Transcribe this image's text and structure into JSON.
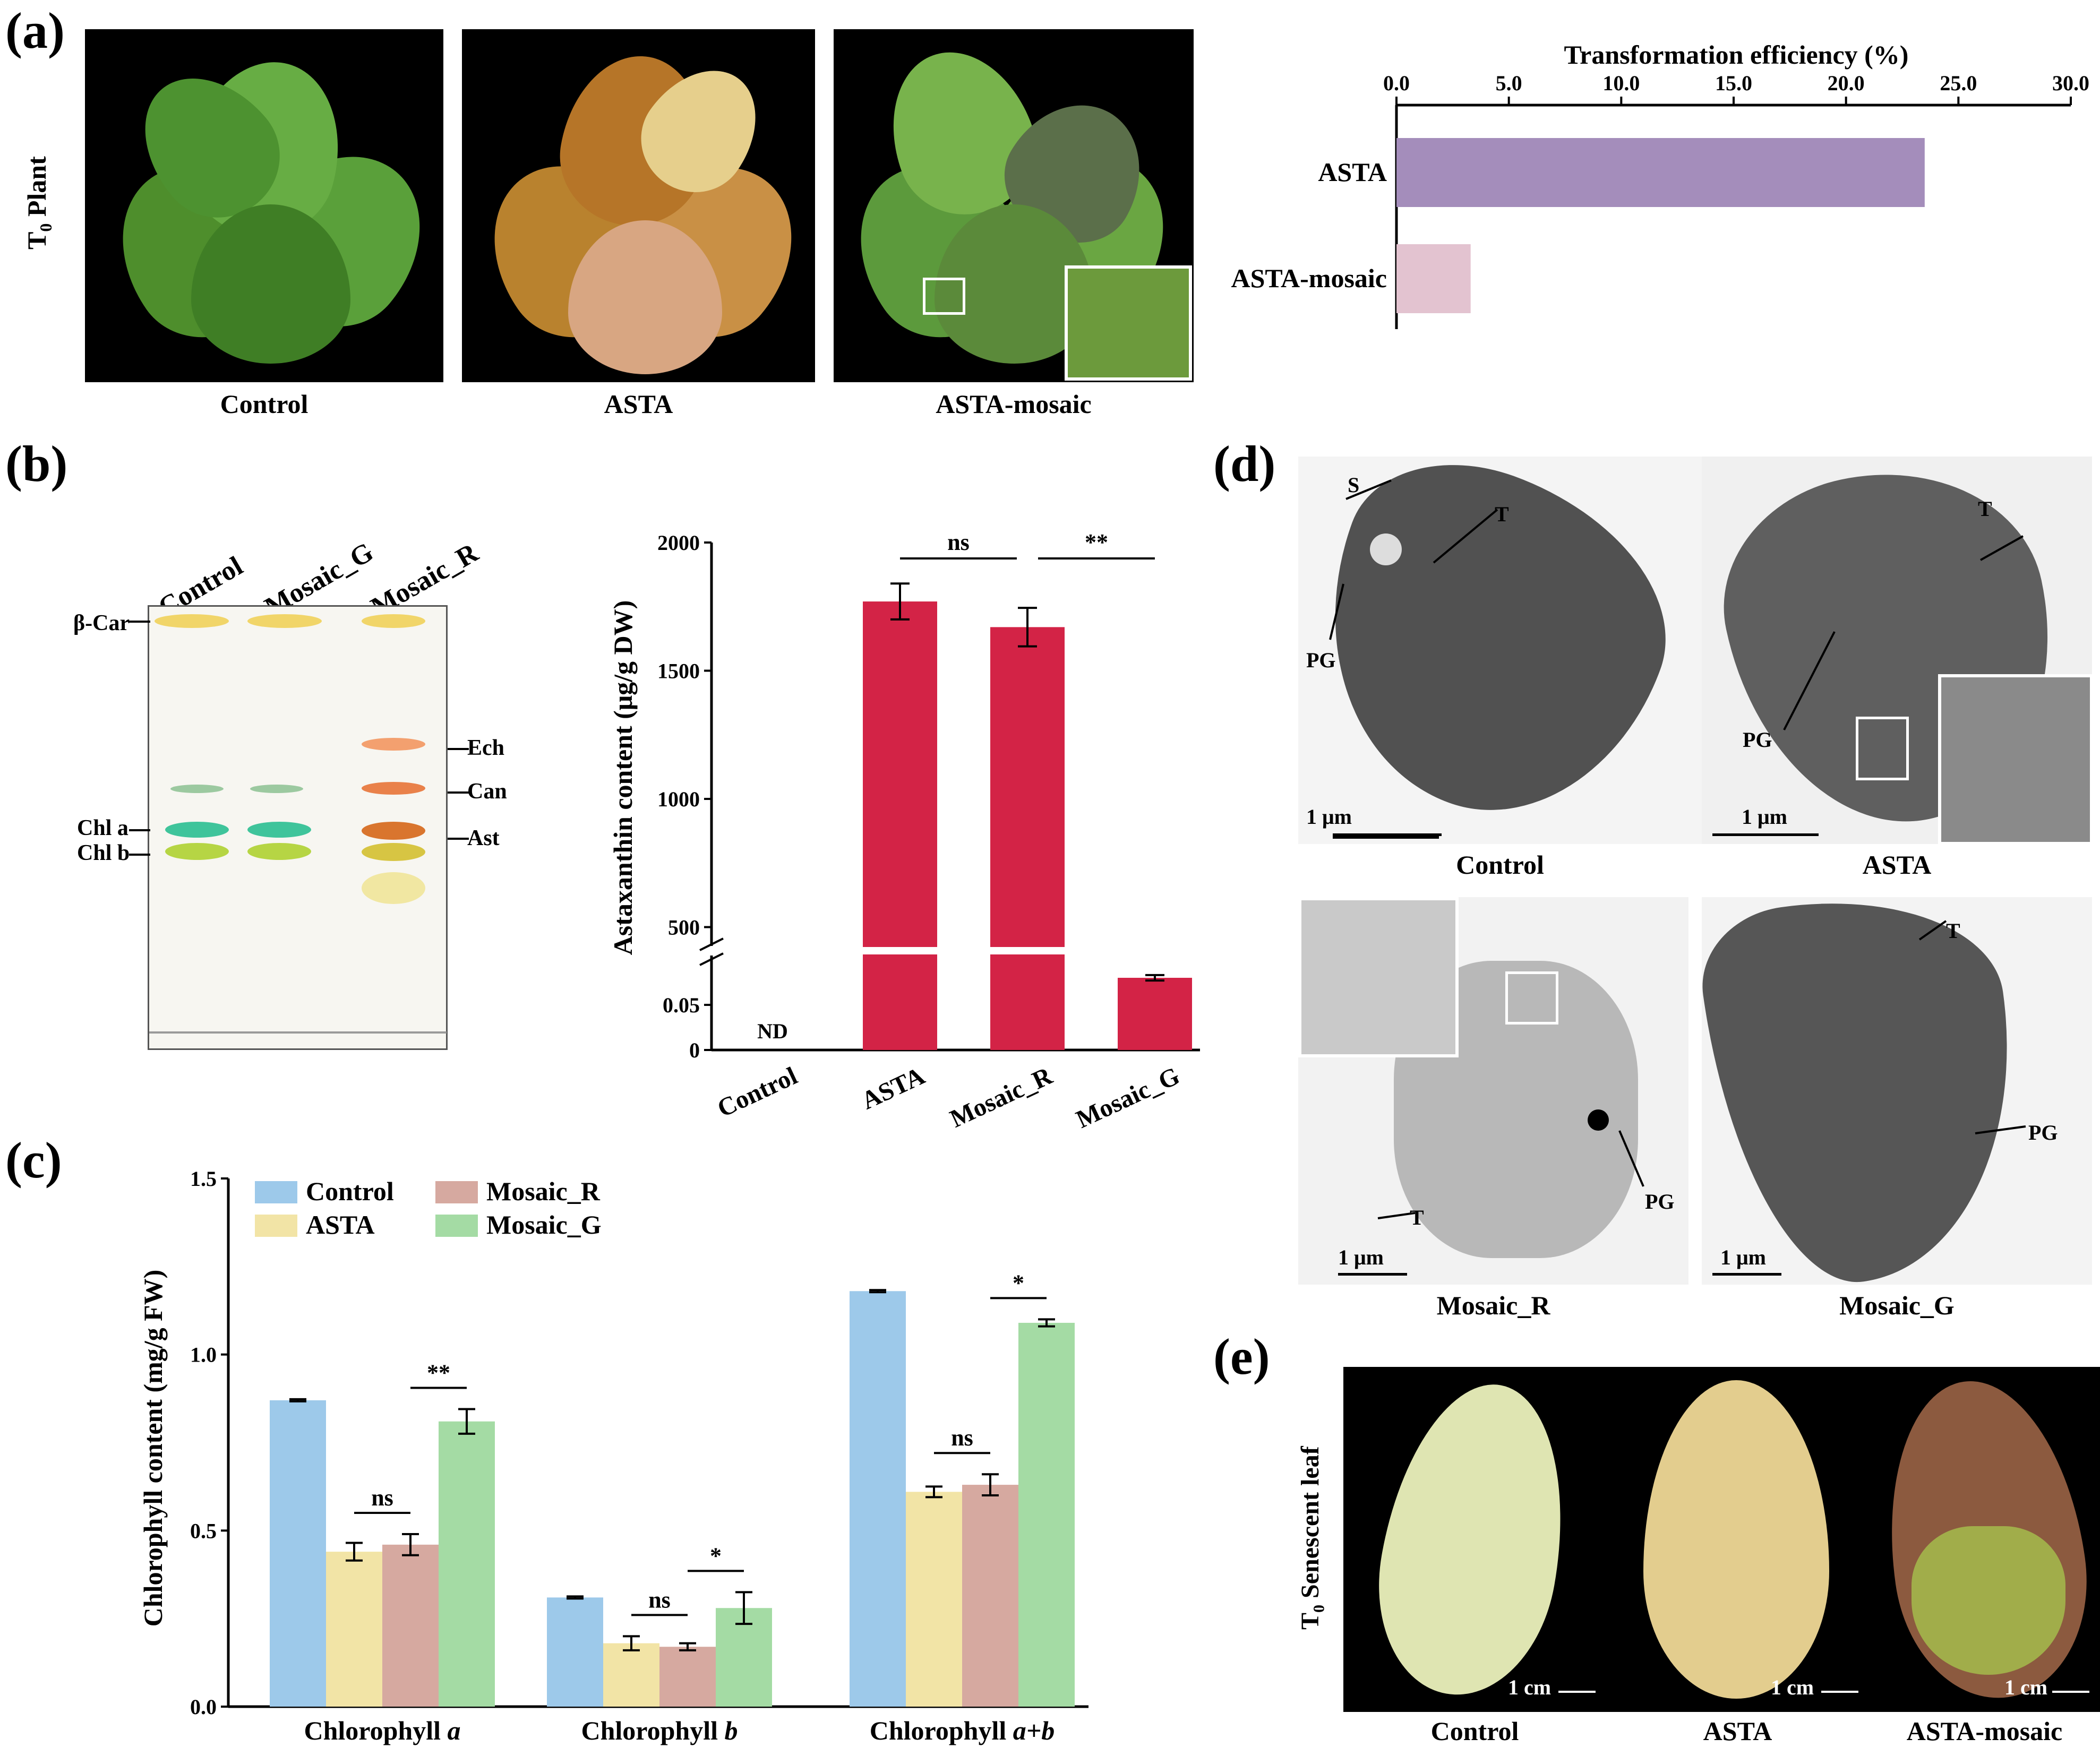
{
  "panels": {
    "a": "(a)",
    "b": "(b)",
    "c": "(c)",
    "d": "(d)",
    "e": "(e)"
  },
  "panel_a": {
    "row_label_prefix": "T",
    "row_label_sub": "0",
    "row_label_rest": " Plant",
    "photo_captions": [
      "Control",
      "ASTA",
      "ASTA-mosaic"
    ]
  },
  "panel_b_tlc": {
    "lanes": [
      "Control",
      "Mosaic_G",
      "Mosaic_R"
    ],
    "left_labels": [
      "β-Car",
      "Chl a",
      "Chl b"
    ],
    "right_labels": [
      "Ech",
      "Can",
      "Ast"
    ]
  },
  "panel_d": {
    "captions": [
      "Control",
      "ASTA",
      "Mosaic_R",
      "Mosaic_G"
    ],
    "scale_bar": "1 μm",
    "labels": [
      "S",
      "T",
      "PG"
    ]
  },
  "panel_e": {
    "row_label_prefix": "T",
    "row_label_sub": "0",
    "row_label_rest": " Senescent leaf",
    "captions": [
      "Control",
      "ASTA",
      "ASTA-mosaic"
    ],
    "scale_bar": "1 cm"
  },
  "colors": {
    "asta_bar": "#a48dbb",
    "mosaic_bar": "#e3c3d0",
    "red_bar": "#d32346",
    "control": "#9dc9ea",
    "asta": "#f2e4a6",
    "mosaic_r": "#d6a9a0",
    "mosaic_g": "#a4dba4"
  },
  "chart_data": [
    {
      "id": "transformation",
      "type": "bar",
      "orientation": "horizontal",
      "title": "Transformation efficiency (%)",
      "categories": [
        "ASTA",
        "ASTA-mosaic"
      ],
      "values": [
        23.5,
        3.3
      ],
      "xlim": [
        0,
        30
      ],
      "ticks": [
        "0.0",
        "5.0",
        "10.0",
        "15.0",
        "20.0",
        "25.0",
        "30.0"
      ]
    },
    {
      "id": "astaxanthin",
      "type": "bar",
      "ylabel": "Astaxanthin content (μg/g DW)",
      "categories": [
        "Control",
        "ASTA",
        "Mosaic_R",
        "Mosaic_G"
      ],
      "values": [
        0,
        1770,
        1670,
        0.08
      ],
      "errors": [
        0,
        70,
        75,
        0.003
      ],
      "value_labels": [
        "ND",
        "",
        "",
        ""
      ],
      "axis_break": true,
      "lower_range": [
        0,
        0.1
      ],
      "upper_range": [
        0,
        2000
      ],
      "ticks_upper": [
        "500",
        "1000",
        "1500",
        "2000"
      ],
      "ticks_lower": [
        "0",
        "0.05"
      ],
      "significance": [
        {
          "from": 1,
          "to": 2,
          "label": "ns"
        },
        {
          "from": 2,
          "to": 3,
          "label": "**"
        }
      ]
    },
    {
      "id": "chlorophyll",
      "type": "bar",
      "ylabel": "Chlorophyll content (mg/g FW)",
      "ylim": [
        0,
        1.5
      ],
      "ticks": [
        "0.0",
        "0.5",
        "1.0",
        "1.5"
      ],
      "categories_prefix": [
        "Chlorophyll ",
        "Chlorophyll ",
        "Chlorophyll "
      ],
      "categories_suffix": [
        "a",
        "b",
        "a+b"
      ],
      "series": [
        {
          "name": "Control",
          "values": [
            0.87,
            0.31,
            1.18
          ],
          "errors": [
            0.003,
            0.003,
            0.003
          ]
        },
        {
          "name": "ASTA",
          "values": [
            0.44,
            0.18,
            0.61
          ],
          "errors": [
            0.025,
            0.02,
            0.015
          ]
        },
        {
          "name": "Mosaic_R",
          "values": [
            0.46,
            0.17,
            0.63
          ],
          "errors": [
            0.03,
            0.01,
            0.03
          ]
        },
        {
          "name": "Mosaic_G",
          "values": [
            0.81,
            0.28,
            1.09
          ],
          "errors": [
            0.035,
            0.045,
            0.01
          ]
        }
      ],
      "legend_placement": "top-left",
      "significance": [
        {
          "group": 0,
          "from": 1,
          "to": 2,
          "label": "ns"
        },
        {
          "group": 0,
          "from": 2,
          "to": 3,
          "label": "**"
        },
        {
          "group": 1,
          "from": 1,
          "to": 2,
          "label": "ns"
        },
        {
          "group": 1,
          "from": 2,
          "to": 3,
          "label": "*"
        },
        {
          "group": 2,
          "from": 1,
          "to": 2,
          "label": "ns"
        },
        {
          "group": 2,
          "from": 2,
          "to": 3,
          "label": "*"
        }
      ]
    }
  ]
}
